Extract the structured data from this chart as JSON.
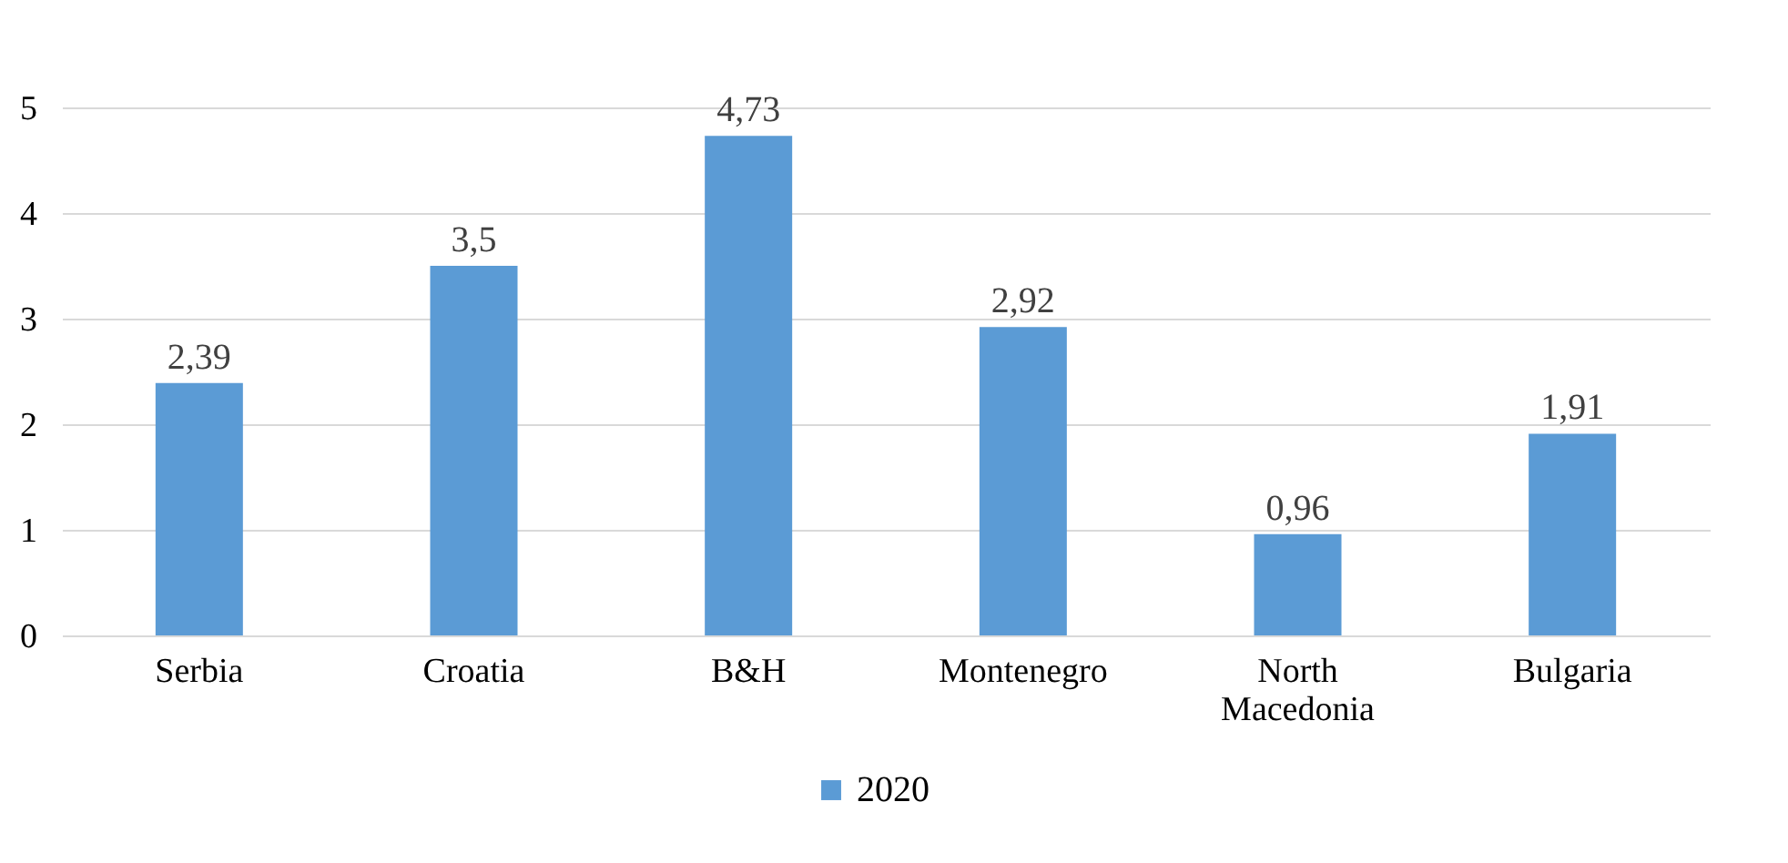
{
  "chart_data": {
    "type": "bar",
    "categories": [
      "Serbia",
      "Croatia",
      "B&H",
      "Montenegro",
      "North Macedonia",
      "Bulgaria"
    ],
    "series": [
      {
        "name": "2020",
        "color": "#5b9bd5",
        "values": [
          2.39,
          3.5,
          4.73,
          2.92,
          0.96,
          1.91
        ],
        "value_labels": [
          "2,39",
          "3,5",
          "4,73",
          "2,92",
          "0,96",
          "1,91"
        ]
      }
    ],
    "ylim": [
      0,
      5
    ],
    "yticks": [
      0,
      1,
      2,
      3,
      4,
      5
    ],
    "grid": "y",
    "legend": "bottom"
  }
}
